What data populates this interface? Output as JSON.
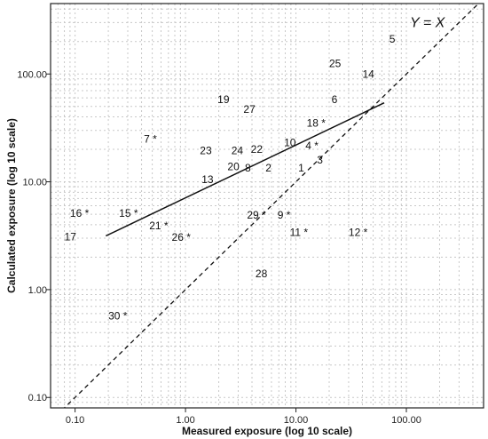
{
  "chart_data": {
    "type": "scatter",
    "xlabel": "Measured exposure (log 10 scale)",
    "ylabel": "Calculated exposure (log 10 scale)",
    "xscale": "log",
    "yscale": "log",
    "xlim": [
      0.06,
      500
    ],
    "ylim": [
      0.08,
      450
    ],
    "grid": true,
    "x_ticks": [
      {
        "value": 0.1,
        "label": "0.10"
      },
      {
        "value": 1,
        "label": "1.00"
      },
      {
        "value": 10,
        "label": "10.00"
      },
      {
        "value": 100,
        "label": "100.00"
      }
    ],
    "y_ticks": [
      {
        "value": 0.1,
        "label": "0.10"
      },
      {
        "value": 1,
        "label": "1.00"
      },
      {
        "value": 10,
        "label": "10.00"
      },
      {
        "value": 100,
        "label": "100.00"
      }
    ],
    "points": [
      {
        "label": "1",
        "x": 10.5,
        "y": 13.5
      },
      {
        "label": "2",
        "x": 5.3,
        "y": 13.5
      },
      {
        "label": "3",
        "x": 15.5,
        "y": 16
      },
      {
        "label": "4 *",
        "x": 12.2,
        "y": 21.5
      },
      {
        "label": "5",
        "x": 70,
        "y": 210
      },
      {
        "label": "6",
        "x": 21,
        "y": 58
      },
      {
        "label": "7 *",
        "x": 0.42,
        "y": 25
      },
      {
        "label": "8",
        "x": 3.45,
        "y": 13.5
      },
      {
        "label": "9 *",
        "x": 6.8,
        "y": 4.9
      },
      {
        "label": "10",
        "x": 7.8,
        "y": 23
      },
      {
        "label": "11 *",
        "x": 8.8,
        "y": 3.4
      },
      {
        "label": "12 *",
        "x": 30,
        "y": 3.4
      },
      {
        "label": "13",
        "x": 1.4,
        "y": 10.5
      },
      {
        "label": "14",
        "x": 40,
        "y": 100
      },
      {
        "label": "15 *",
        "x": 0.25,
        "y": 5.1
      },
      {
        "label": "16 *",
        "x": 0.09,
        "y": 5.1
      },
      {
        "label": "17",
        "x": 0.08,
        "y": 3.1
      },
      {
        "label": "18 *",
        "x": 12.5,
        "y": 35
      },
      {
        "label": "19",
        "x": 1.95,
        "y": 58
      },
      {
        "label": "20",
        "x": 2.4,
        "y": 13.8
      },
      {
        "label": "21 *",
        "x": 0.47,
        "y": 3.9
      },
      {
        "label": "22",
        "x": 3.9,
        "y": 20
      },
      {
        "label": "23",
        "x": 1.35,
        "y": 19.5
      },
      {
        "label": "24",
        "x": 2.6,
        "y": 19.5
      },
      {
        "label": "25",
        "x": 20,
        "y": 125
      },
      {
        "label": "26 *",
        "x": 0.75,
        "y": 3.05
      },
      {
        "label": "27",
        "x": 3.35,
        "y": 47
      },
      {
        "label": "28",
        "x": 4.3,
        "y": 1.4
      },
      {
        "label": "29 *",
        "x": 3.6,
        "y": 4.9
      },
      {
        "label": "30 *",
        "x": 0.2,
        "y": 0.57
      }
    ],
    "series": [
      {
        "type": "line",
        "style": "solid",
        "x": [
          0.19,
          63
        ],
        "y": [
          3.15,
          54
        ]
      },
      {
        "type": "line",
        "style": "dashed",
        "x": [
          0.06,
          500
        ],
        "y": [
          0.06,
          500
        ]
      }
    ],
    "annotations": [
      {
        "text": "Y = X",
        "x": 155,
        "y": 300
      }
    ]
  }
}
